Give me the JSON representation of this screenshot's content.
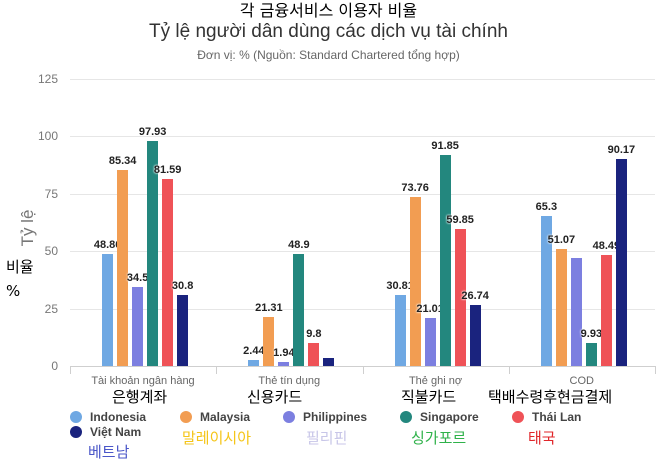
{
  "header": {
    "title_kr": "각 금융서비스 이용자 비율",
    "title_vn": "Tỷ lệ người dân dùng các dịch vụ tài chính",
    "subtitle": "Đơn vị: % (Nguồn: Standard Chartered tổng hợp)"
  },
  "axis": {
    "ylabel": "Tỷ lệ",
    "ylabel_kr": "비율",
    "ylabel_kr_unit": "%",
    "yticks": [
      "125",
      "100",
      "75",
      "50",
      "25",
      "0"
    ]
  },
  "categories": [
    {
      "label": "Tài khoản ngân hàng",
      "label_kr": "은행계좌"
    },
    {
      "label": "Thẻ tín dụng",
      "label_kr": "신용카드"
    },
    {
      "label": "Thẻ ghi nợ",
      "label_kr": "직불카드"
    },
    {
      "label": "COD",
      "label_kr": "택배수령후현금결제"
    }
  ],
  "legend": [
    {
      "name": "Indonesia",
      "name_kr": "",
      "color": "#6fa8e3",
      "kr_color": ""
    },
    {
      "name": "Malaysia",
      "name_kr": "말레이시아",
      "color": "#f29d52",
      "kr_color": "#f5c518"
    },
    {
      "name": "Philippines",
      "name_kr": "필리핀",
      "color": "#7c7fe0",
      "kr_color": "#c8c6e8"
    },
    {
      "name": "Singapore",
      "name_kr": "싱가포르",
      "color": "#23877e",
      "kr_color": "#2fb24a"
    },
    {
      "name": "Thái Lan",
      "name_kr": "태국",
      "color": "#ef5257",
      "kr_color": "#e0262a"
    },
    {
      "name": "Việt Nam",
      "name_kr": "베트남",
      "color": "#1a237e",
      "kr_color": "#4a56c8"
    }
  ],
  "chart_data": {
    "type": "bar",
    "title": "Tỷ lệ người dân dùng các dịch vụ tài chính",
    "subtitle": "Đơn vị: % (Nguồn: Standard Chartered tổng hợp)",
    "xlabel": "",
    "ylabel": "Tỷ lệ",
    "ylim": [
      0,
      125
    ],
    "yticks": [
      0,
      25,
      50,
      75,
      100,
      125
    ],
    "grid": true,
    "legend_position": "bottom",
    "categories": [
      "Tài khoản ngân hàng",
      "Thẻ tín dụng",
      "Thẻ ghi nợ",
      "COD"
    ],
    "series": [
      {
        "name": "Indonesia",
        "values": [
          48.86,
          2.44,
          30.81,
          65.3
        ],
        "labels": [
          "48.86",
          "2.44",
          "30.81",
          "65.3"
        ]
      },
      {
        "name": "Malaysia",
        "values": [
          85.34,
          21.31,
          73.76,
          51.07
        ],
        "labels": [
          "85.34",
          "21.31",
          "73.76",
          "51.07"
        ]
      },
      {
        "name": "Philippines",
        "values": [
          34.5,
          1.94,
          21.01,
          47
        ],
        "labels": [
          "34.5",
          "1.94",
          "21.01",
          ""
        ]
      },
      {
        "name": "Singapore",
        "values": [
          97.93,
          48.9,
          91.85,
          9.93
        ],
        "labels": [
          "97.93",
          "48.9",
          "91.85",
          "9.93"
        ]
      },
      {
        "name": "Thái Lan",
        "values": [
          81.59,
          9.8,
          59.85,
          48.49
        ],
        "labels": [
          "81.59",
          "9.8",
          "59.85",
          "48.49"
        ]
      },
      {
        "name": "Việt Nam",
        "values": [
          30.8,
          3.5,
          26.74,
          90.17
        ],
        "labels": [
          "30.8",
          "",
          "26.74",
          "90.17"
        ]
      }
    ]
  }
}
